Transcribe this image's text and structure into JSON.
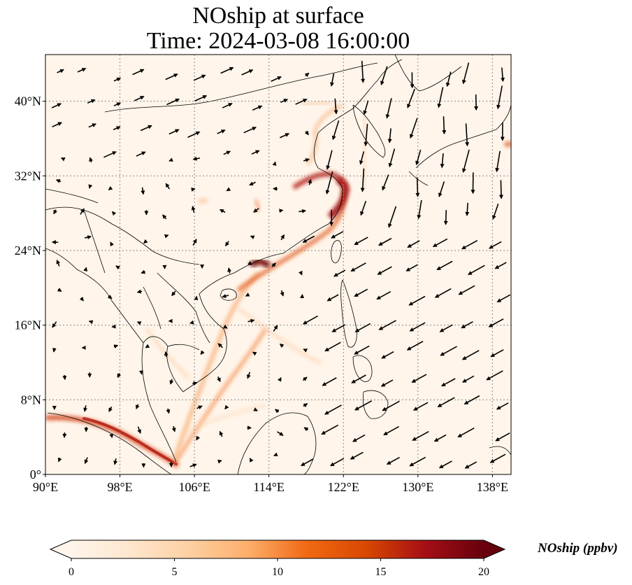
{
  "title": {
    "line1": "NOship at surface",
    "line2": "Time: 2024-03-08 16:00:00"
  },
  "map": {
    "lon_range": [
      90,
      140
    ],
    "lat_range": [
      0,
      45
    ],
    "lon_ticks": [
      {
        "value": 90,
        "label": "90°E"
      },
      {
        "value": 98,
        "label": "98°E"
      },
      {
        "value": 106,
        "label": "106°E"
      },
      {
        "value": 114,
        "label": "114°E"
      },
      {
        "value": 122,
        "label": "122°E"
      },
      {
        "value": 130,
        "label": "130°E"
      },
      {
        "value": 138,
        "label": "138°E"
      }
    ],
    "lat_ticks": [
      {
        "value": 0,
        "label": "0°"
      },
      {
        "value": 8,
        "label": "8°N"
      },
      {
        "value": 16,
        "label": "16°N"
      },
      {
        "value": 24,
        "label": "24°N"
      },
      {
        "value": 32,
        "label": "32°N"
      },
      {
        "value": 40,
        "label": "40°N"
      }
    ],
    "gridlines": true,
    "background_color": "#fff5ea",
    "coastline_color": "#000000"
  },
  "colorbar": {
    "label": "NOship (ppbv)",
    "min": 0,
    "max": 20,
    "ticks": [
      {
        "value": 0,
        "label": "0"
      },
      {
        "value": 5,
        "label": "5"
      },
      {
        "value": 10,
        "label": "10"
      },
      {
        "value": 15,
        "label": "15"
      },
      {
        "value": 20,
        "label": "20"
      }
    ],
    "colormap": [
      "#fff5eb",
      "#fee6ce",
      "#fdd0a2",
      "#fdae6b",
      "#f16913",
      "#d94801",
      "#a50f15",
      "#67000d"
    ],
    "extend": "both"
  }
}
